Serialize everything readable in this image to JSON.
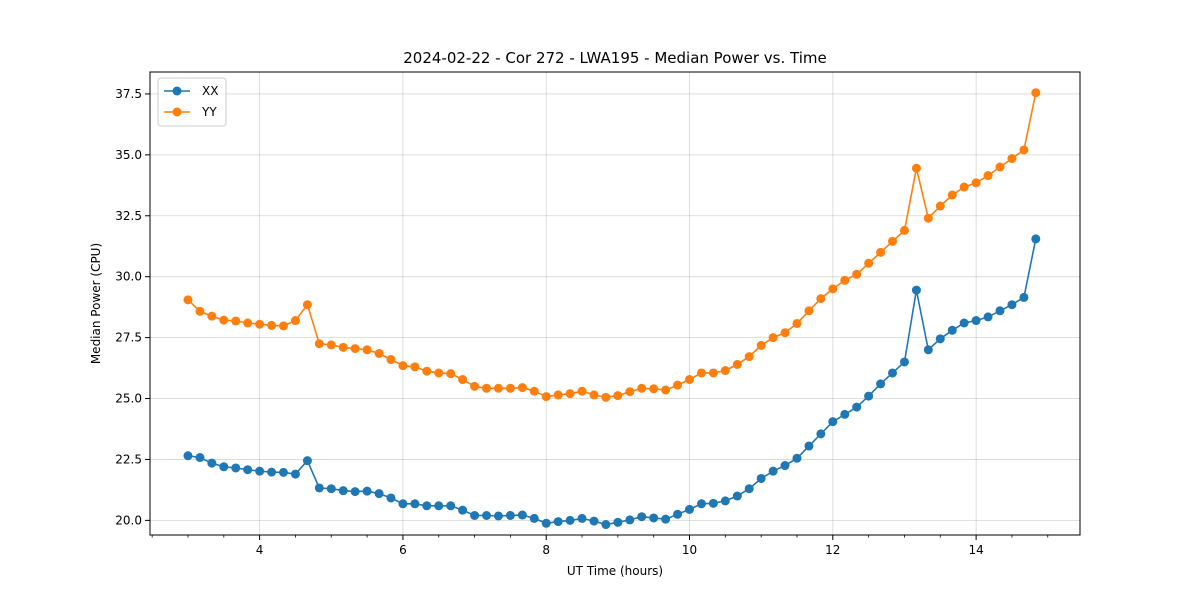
{
  "chart_data": {
    "type": "line",
    "title": "2024-02-22 - Cor 272 - LWA195 - Median Power vs. Time",
    "xlabel": "UT Time (hours)",
    "ylabel": "Median Power (CPU)",
    "xlim": [
      2.47,
      15.45
    ],
    "ylim": [
      19.4,
      38.4
    ],
    "xticks": [
      4,
      6,
      8,
      10,
      12,
      14
    ],
    "xtick_labels": [
      "4",
      "6",
      "8",
      "10",
      "12",
      "14"
    ],
    "yticks": [
      20.0,
      22.5,
      25.0,
      27.5,
      30.0,
      32.5,
      35.0,
      37.5
    ],
    "ytick_labels": [
      "20.0",
      "22.5",
      "25.0",
      "27.5",
      "30.0",
      "32.5",
      "35.0",
      "37.5"
    ],
    "grid": true,
    "legend": "top-left",
    "x": [
      3.0,
      3.167,
      3.333,
      3.5,
      3.667,
      3.833,
      4.0,
      4.167,
      4.333,
      4.5,
      4.667,
      4.833,
      5.0,
      5.167,
      5.333,
      5.5,
      5.667,
      5.833,
      6.0,
      6.167,
      6.333,
      6.5,
      6.667,
      6.833,
      7.0,
      7.167,
      7.333,
      7.5,
      7.667,
      7.833,
      8.0,
      8.167,
      8.333,
      8.5,
      8.667,
      8.833,
      9.0,
      9.167,
      9.333,
      9.5,
      9.667,
      9.833,
      10.0,
      10.167,
      10.333,
      10.5,
      10.667,
      10.833,
      11.0,
      11.167,
      11.333,
      11.5,
      11.667,
      11.833,
      12.0,
      12.167,
      12.333,
      12.5,
      12.667,
      12.833,
      13.0,
      13.167,
      13.333,
      13.5,
      13.667,
      13.833,
      14.0,
      14.167,
      14.333,
      14.5,
      14.667,
      14.833
    ],
    "series": [
      {
        "name": "XX",
        "color": "#1f77b4",
        "values": [
          22.65,
          22.58,
          22.35,
          22.2,
          22.15,
          22.08,
          22.02,
          21.98,
          21.97,
          21.9,
          22.45,
          21.33,
          21.3,
          21.22,
          21.18,
          21.2,
          21.1,
          20.92,
          20.68,
          20.68,
          20.6,
          20.6,
          20.6,
          20.42,
          20.2,
          20.2,
          20.18,
          20.2,
          20.22,
          20.08,
          19.88,
          19.95,
          20.0,
          20.08,
          19.97,
          19.83,
          19.92,
          20.02,
          20.15,
          20.1,
          20.05,
          20.25,
          20.45,
          20.68,
          20.7,
          20.8,
          21.0,
          21.3,
          21.72,
          22.02,
          22.25,
          22.55,
          23.05,
          23.55,
          24.05,
          24.35,
          24.65,
          25.1,
          25.6,
          26.05,
          26.5,
          29.45,
          27.0,
          27.45,
          27.8,
          28.1,
          28.2,
          28.35,
          28.6,
          28.85,
          29.15,
          31.55
        ]
      },
      {
        "name": "YY",
        "color": "#ff7f0e",
        "values": [
          29.05,
          28.58,
          28.38,
          28.22,
          28.18,
          28.1,
          28.05,
          28.0,
          27.98,
          28.2,
          28.85,
          27.25,
          27.2,
          27.1,
          27.05,
          27.0,
          26.85,
          26.6,
          26.35,
          26.3,
          26.12,
          26.05,
          26.02,
          25.78,
          25.5,
          25.42,
          25.42,
          25.42,
          25.45,
          25.3,
          25.08,
          25.15,
          25.2,
          25.3,
          25.15,
          25.05,
          25.12,
          25.28,
          25.42,
          25.4,
          25.35,
          25.55,
          25.78,
          26.05,
          26.05,
          26.15,
          26.4,
          26.72,
          27.18,
          27.5,
          27.7,
          28.08,
          28.6,
          29.1,
          29.5,
          29.85,
          30.1,
          30.55,
          31.0,
          31.45,
          31.9,
          34.45,
          32.4,
          32.9,
          33.35,
          33.68,
          33.85,
          34.15,
          34.5,
          34.85,
          35.2,
          37.55
        ]
      }
    ]
  }
}
